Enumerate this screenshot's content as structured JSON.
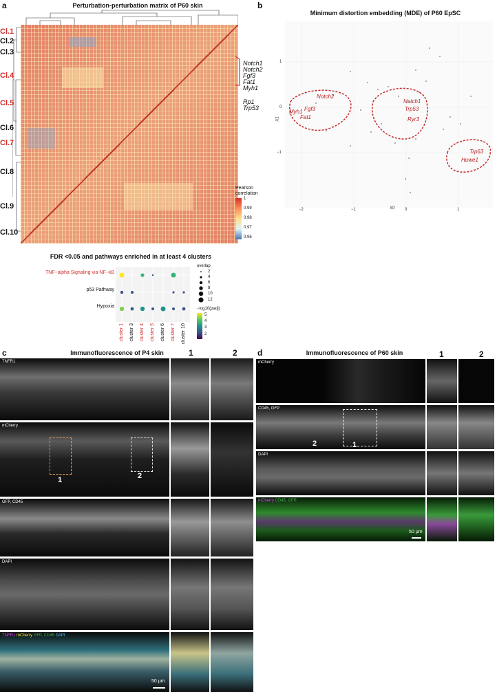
{
  "panels": {
    "a": {
      "label": "a",
      "title": "Perturbation-perturbation matrix of P60 skin"
    },
    "b": {
      "label": "b",
      "title": "Minimum distortion embedding (MDE) of P60 EpSC"
    },
    "c": {
      "label": "c",
      "title": "Immunofluorescence of P4 skin"
    },
    "d": {
      "label": "d",
      "title": "Immunofluorescence of P60 skin"
    }
  },
  "heatmap": {
    "clusters": [
      {
        "name": "Cl.1",
        "color": "#d32f2f"
      },
      {
        "name": "Cl.2",
        "color": "#222222"
      },
      {
        "name": "Cl.3",
        "color": "#222222"
      },
      {
        "name": "Cl.4",
        "color": "#d32f2f"
      },
      {
        "name": "Cl.5",
        "color": "#d32f2f"
      },
      {
        "name": "Cl.6",
        "color": "#222222"
      },
      {
        "name": "Cl.7",
        "color": "#d32f2f"
      },
      {
        "name": "Cl.8",
        "color": "#222222"
      },
      {
        "name": "Cl.9",
        "color": "#222222"
      },
      {
        "name": "Cl.10",
        "color": "#222222"
      }
    ],
    "highlight_genes": [
      "Notch1",
      "Notch2",
      "Fgf3",
      "Fat1",
      "Myh1"
    ],
    "other_genes": [
      "Rp1",
      "Trp53"
    ],
    "legend": {
      "title": "Pearson\ncorrelation",
      "ticks": [
        "1",
        "0.99",
        "0.98",
        "0.97",
        "0.96"
      ]
    }
  },
  "mde": {
    "xlabel": "X0",
    "ylabel": "X1",
    "xticks": [
      "−2",
      "−1",
      "0",
      "1"
    ],
    "yticks": [
      "1",
      "0",
      "−1"
    ],
    "labels": [
      "Notch2",
      "Myh1",
      "Fgf3",
      "Fat1",
      "Notch1",
      "Trp53",
      "Ryr3",
      "Trp63",
      "Huwe1"
    ]
  },
  "dotplot": {
    "title": "FDR <0.05 and pathways enriched in at least 4 clusters",
    "pathways": [
      {
        "name": "TNF−alpha Signaling via NF−kB",
        "color": "#d32f2f"
      },
      {
        "name": "p53 Pathway",
        "color": "#222222"
      },
      {
        "name": "Hypoxia",
        "color": "#222222"
      }
    ],
    "clusters": [
      {
        "name": "cluster 1",
        "color": "#d32f2f"
      },
      {
        "name": "cluster 3",
        "color": "#222222"
      },
      {
        "name": "cluster 4",
        "color": "#d32f2f"
      },
      {
        "name": "cluster 5",
        "color": "#d32f2f"
      },
      {
        "name": "cluster 6",
        "color": "#222222"
      },
      {
        "name": "cluster 7",
        "color": "#d32f2f"
      },
      {
        "name": "cluster 10",
        "color": "#222222"
      }
    ],
    "overlap_title": "overlap",
    "overlap_ticks": [
      "2",
      "4",
      "6",
      "8",
      "10",
      "12"
    ],
    "color_title": "−log10(padj)",
    "color_ticks": [
      "5",
      "4",
      "3",
      "2"
    ]
  },
  "if_c": {
    "zoom_labels": [
      "1",
      "2"
    ],
    "channels": [
      "TNFR1",
      "mCherry",
      "GFP, CD45",
      "DAPI"
    ],
    "merge": [
      {
        "text": "TNFR1",
        "color": "#e040fb"
      },
      {
        "text": " mCherry",
        "color": "#ffeb3b"
      },
      {
        "text": " GFP, CD45",
        "color": "#4caf50"
      },
      {
        "text": " DAPI",
        "color": "#4fc3f7"
      }
    ],
    "box_labels": [
      "1",
      "2"
    ],
    "scalebar": "50 μm"
  },
  "if_d": {
    "zoom_labels": [
      "1",
      "2"
    ],
    "channels": [
      "mCherry",
      "CD45, GFP",
      "DAPI"
    ],
    "merge": [
      {
        "text": "mCherry",
        "color": "#e040fb"
      },
      {
        "text": " CD45, GFP",
        "color": "#4caf50"
      }
    ],
    "box_labels": [
      "2",
      "1"
    ],
    "scalebar": "50 μm"
  }
}
